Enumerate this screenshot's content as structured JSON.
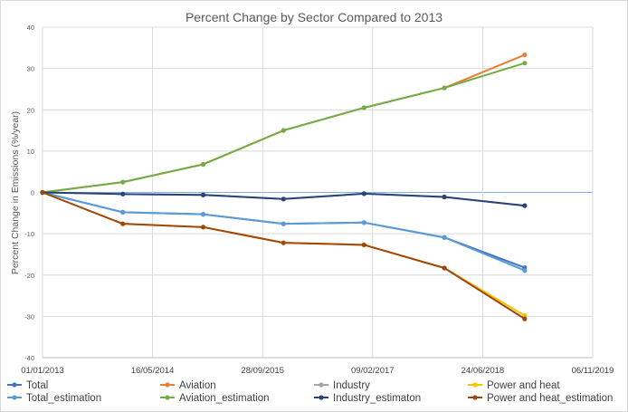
{
  "chart_data": {
    "type": "line",
    "title": "Percent Change by Sector Compared to 2013",
    "xlabel": "",
    "ylabel": "Percent Change in Emissions (%/year)",
    "ylim": [
      -40,
      40
    ],
    "yticks": [
      -40,
      -30,
      -20,
      -10,
      0,
      10,
      20,
      30,
      40
    ],
    "xlim": [
      "2013-01-01",
      "2019-11-06"
    ],
    "xtick_labels": [
      "01/01/2013",
      "16/05/2014",
      "28/09/2015",
      "09/02/2017",
      "24/06/2018",
      "06/11/2019"
    ],
    "grid": true,
    "legend_position": "bottom",
    "series": [
      {
        "name": "Total",
        "color": "#4472C4",
        "x": [
          "2013-01-01",
          "2014-01-01",
          "2015-01-01",
          "2016-01-01",
          "2017-01-01",
          "2018-01-01",
          "2019-01-01"
        ],
        "values": [
          0,
          -4.8,
          -5.3,
          -7.6,
          -7.3,
          -10.9,
          -18.2
        ]
      },
      {
        "name": "Aviation",
        "color": "#ED7D31",
        "x": [
          "2013-01-01",
          "2014-01-01",
          "2015-01-01",
          "2016-01-01",
          "2017-01-01",
          "2018-01-01",
          "2019-01-01"
        ],
        "values": [
          0,
          2.5,
          6.8,
          15.0,
          20.5,
          25.3,
          33.3
        ]
      },
      {
        "name": "Industry",
        "color": "#A5A5A5",
        "x": [
          "2013-01-01",
          "2014-01-01",
          "2015-01-01",
          "2016-01-01",
          "2017-01-01",
          "2018-01-01",
          "2019-01-01"
        ],
        "values": [
          0,
          -0.4,
          -0.6,
          -1.6,
          -0.3,
          -1.1,
          -3.2
        ]
      },
      {
        "name": "Power and heat",
        "color": "#FFC000",
        "x": [
          "2013-01-01",
          "2014-01-01",
          "2015-01-01",
          "2016-01-01",
          "2017-01-01",
          "2018-01-01",
          "2019-01-01"
        ],
        "values": [
          0,
          -7.6,
          -8.4,
          -12.2,
          -12.7,
          -18.3,
          -29.8
        ]
      },
      {
        "name": "Total_estimation",
        "color": "#5B9BD5",
        "x": [
          "2013-01-01",
          "2014-01-01",
          "2015-01-01",
          "2016-01-01",
          "2017-01-01",
          "2018-01-01",
          "2019-01-01"
        ],
        "values": [
          0,
          -4.8,
          -5.3,
          -7.6,
          -7.3,
          -10.9,
          -18.9
        ]
      },
      {
        "name": "Aviation_estimation",
        "color": "#70AD47",
        "x": [
          "2013-01-01",
          "2014-01-01",
          "2015-01-01",
          "2016-01-01",
          "2017-01-01",
          "2018-01-01",
          "2019-01-01"
        ],
        "values": [
          0,
          2.5,
          6.8,
          15.0,
          20.5,
          25.3,
          31.3
        ]
      },
      {
        "name": "Industry_estimaton",
        "color": "#264478",
        "x": [
          "2013-01-01",
          "2014-01-01",
          "2015-01-01",
          "2016-01-01",
          "2017-01-01",
          "2018-01-01",
          "2019-01-01"
        ],
        "values": [
          0,
          -0.4,
          -0.6,
          -1.6,
          -0.3,
          -1.1,
          -3.2
        ]
      },
      {
        "name": "Power and heat_estimation",
        "color": "#9E480E",
        "x": [
          "2013-01-01",
          "2014-01-01",
          "2015-01-01",
          "2016-01-01",
          "2017-01-01",
          "2018-01-01",
          "2019-01-01"
        ],
        "values": [
          0,
          -7.6,
          -8.4,
          -12.2,
          -12.7,
          -18.3,
          -30.6
        ]
      }
    ]
  }
}
